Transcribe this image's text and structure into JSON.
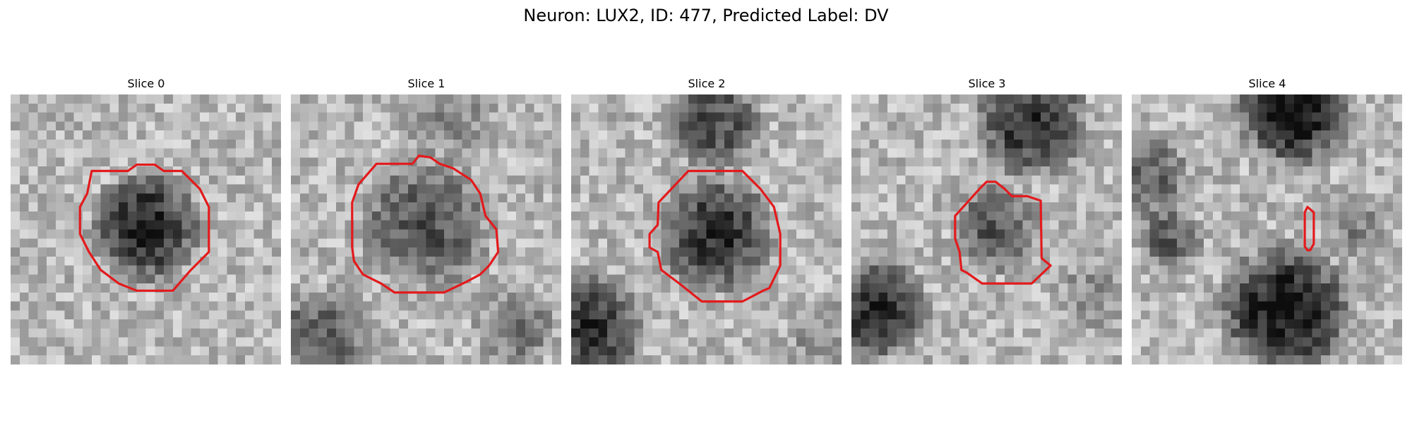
{
  "figure": {
    "title": "Neuron: LUX2, ID: 477, Predicted Label: DV",
    "contour_color": "#e31a1c"
  },
  "slices": [
    {
      "title": "Slice 0"
    },
    {
      "title": "Slice 1"
    },
    {
      "title": "Slice 2"
    },
    {
      "title": "Slice 3"
    },
    {
      "title": "Slice 4"
    }
  ]
}
